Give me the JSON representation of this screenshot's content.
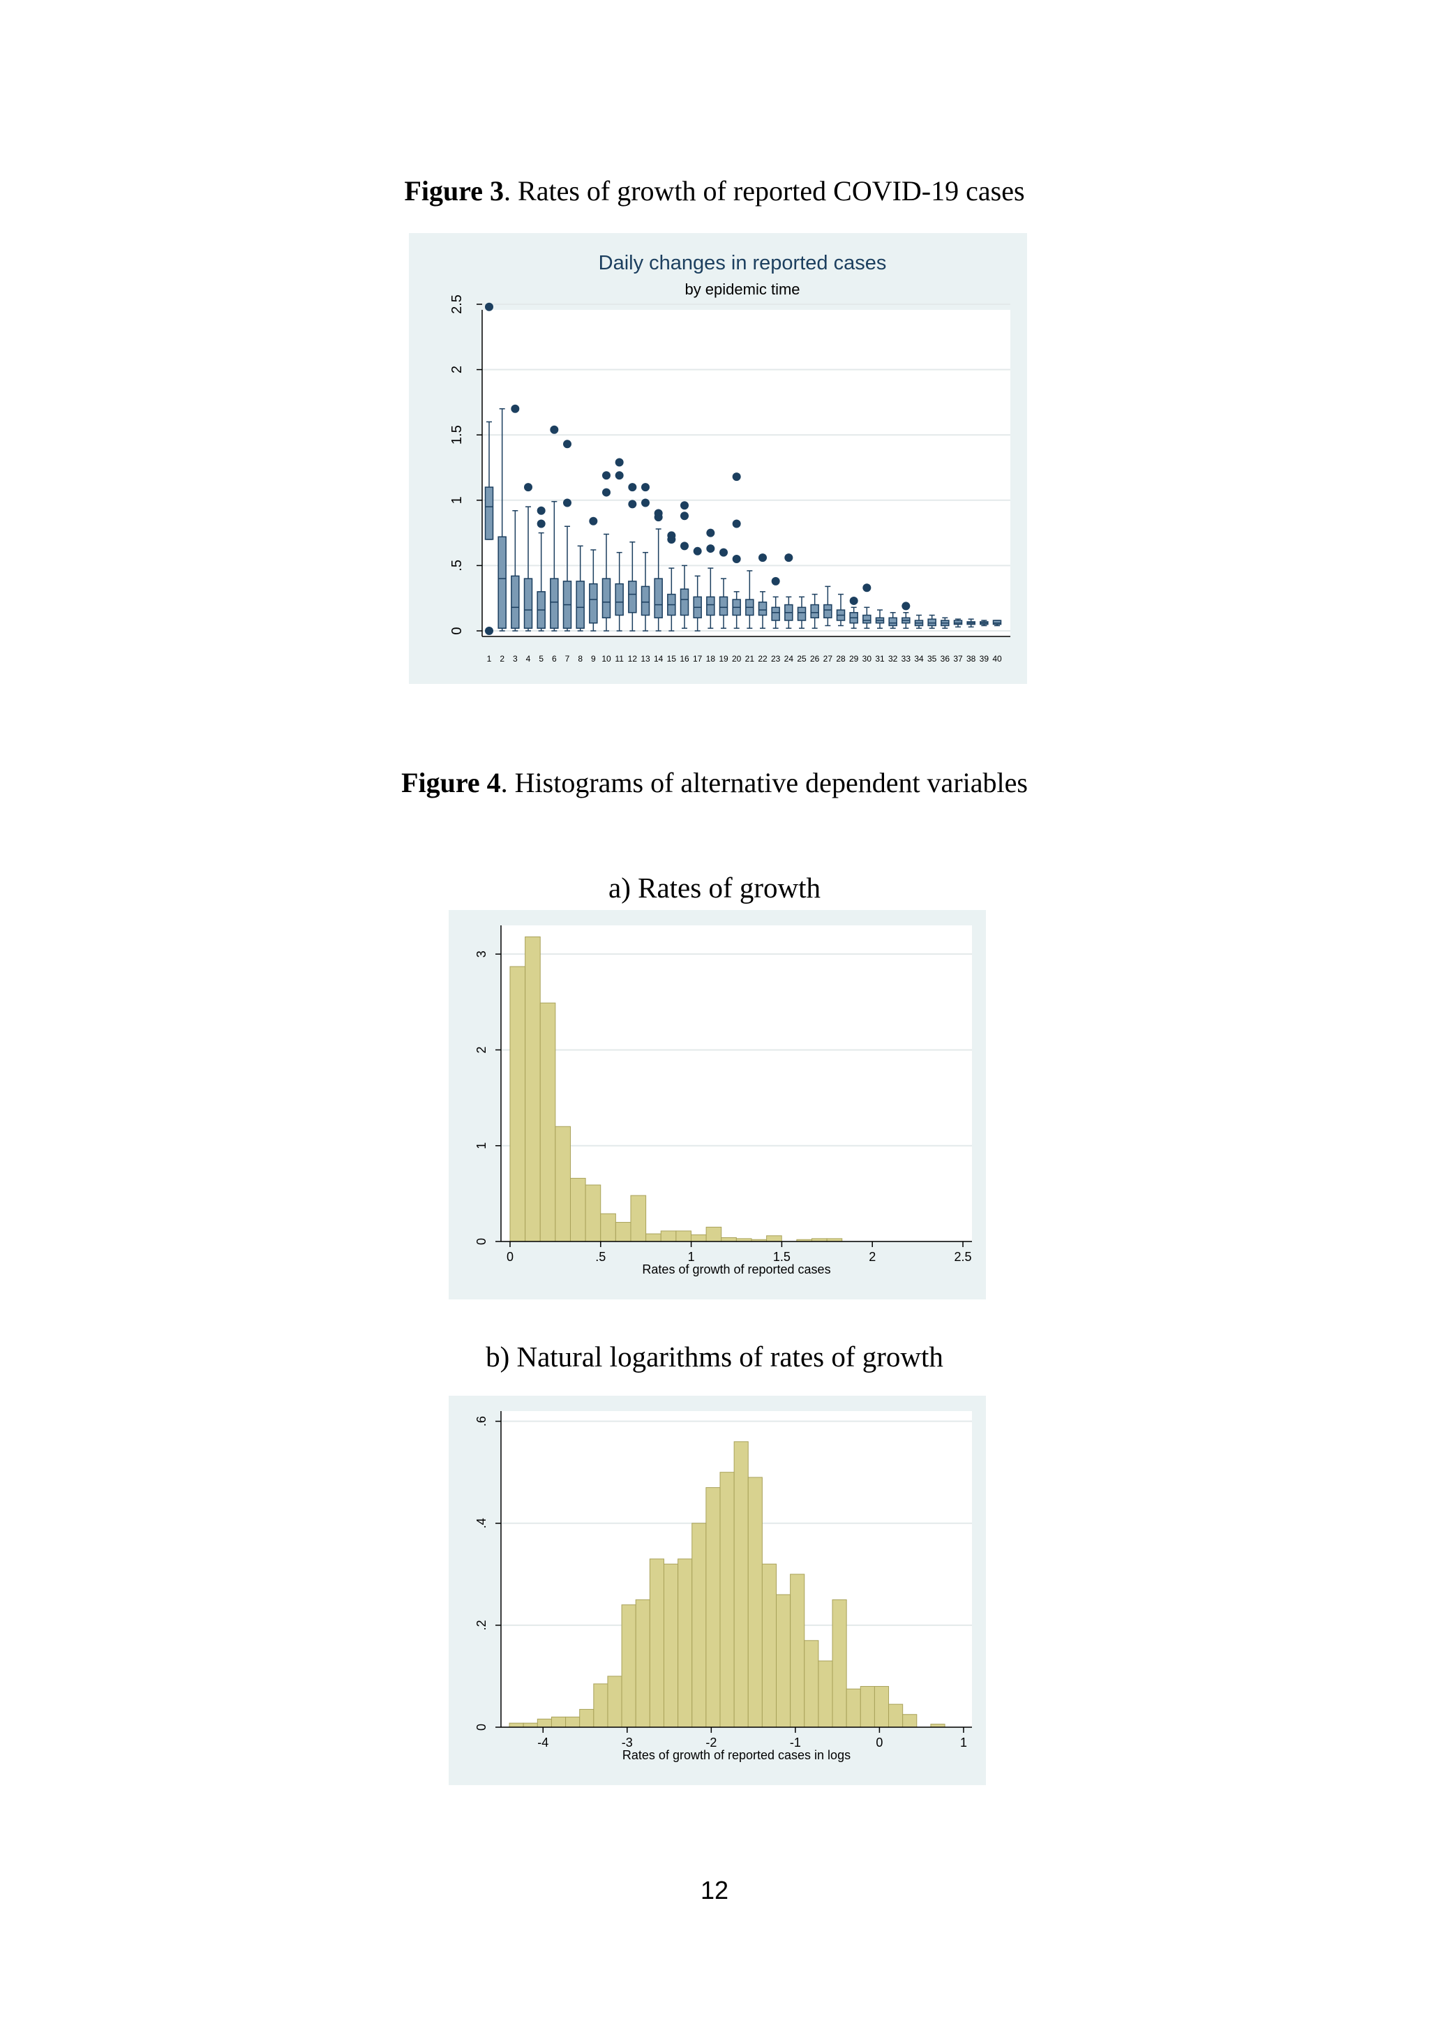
{
  "page_number": "12",
  "figure3": {
    "label": "Figure 3",
    "caption": ". Rates of growth of reported COVID-19 cases"
  },
  "figure4": {
    "label": "Figure 4",
    "caption": ". Histograms of alternative dependent variables",
    "panel_a_caption": "a) Rates of growth",
    "panel_b_caption": "b) Natural logarithms of rates of growth"
  },
  "colors": {
    "panel_bg": "#eaf2f3",
    "box_fill": "#7b9ab4",
    "box_stroke": "#1c3f5f",
    "outlier": "#1c3f5f",
    "hist_fill": "#d8d28f",
    "hist_stroke": "#a9a25a",
    "grid": "#e3e9ea"
  },
  "chart_data": [
    {
      "type": "box",
      "title": "Daily changes in reported cases",
      "subtitle": "by epidemic time",
      "xlabel": "",
      "ylabel": "",
      "ylim": [
        0,
        2.5
      ],
      "grid": true,
      "y_ticks": [
        0,
        0.5,
        1,
        1.5,
        2,
        2.5
      ],
      "y_tick_labels": [
        "0",
        ".5",
        "1",
        "1.5",
        "2",
        "2.5"
      ],
      "categories": [
        "1",
        "2",
        "3",
        "4",
        "5",
        "6",
        "7",
        "8",
        "9",
        "10",
        "11",
        "12",
        "13",
        "14",
        "15",
        "16",
        "17",
        "18",
        "19",
        "20",
        "21",
        "22",
        "23",
        "24",
        "25",
        "26",
        "27",
        "28",
        "29",
        "30",
        "31",
        "32",
        "33",
        "34",
        "35",
        "36",
        "37",
        "38",
        "39",
        "40"
      ],
      "boxes": [
        {
          "lo": 0.7,
          "q1": 0.7,
          "med": 0.95,
          "q3": 1.1,
          "hi": 1.6
        },
        {
          "lo": 0.0,
          "q1": 0.02,
          "med": 0.4,
          "q3": 0.72,
          "hi": 1.7
        },
        {
          "lo": 0.0,
          "q1": 0.02,
          "med": 0.18,
          "q3": 0.42,
          "hi": 0.92
        },
        {
          "lo": 0.0,
          "q1": 0.02,
          "med": 0.16,
          "q3": 0.4,
          "hi": 0.95
        },
        {
          "lo": 0.0,
          "q1": 0.02,
          "med": 0.16,
          "q3": 0.3,
          "hi": 0.75
        },
        {
          "lo": 0.0,
          "q1": 0.02,
          "med": 0.22,
          "q3": 0.4,
          "hi": 0.99
        },
        {
          "lo": 0.0,
          "q1": 0.02,
          "med": 0.2,
          "q3": 0.38,
          "hi": 0.8
        },
        {
          "lo": 0.0,
          "q1": 0.02,
          "med": 0.18,
          "q3": 0.38,
          "hi": 0.65
        },
        {
          "lo": 0.0,
          "q1": 0.06,
          "med": 0.24,
          "q3": 0.36,
          "hi": 0.62
        },
        {
          "lo": 0.0,
          "q1": 0.1,
          "med": 0.22,
          "q3": 0.4,
          "hi": 0.74
        },
        {
          "lo": 0.0,
          "q1": 0.12,
          "med": 0.22,
          "q3": 0.36,
          "hi": 0.6
        },
        {
          "lo": 0.0,
          "q1": 0.14,
          "med": 0.28,
          "q3": 0.38,
          "hi": 0.68
        },
        {
          "lo": 0.0,
          "q1": 0.12,
          "med": 0.22,
          "q3": 0.34,
          "hi": 0.6
        },
        {
          "lo": 0.0,
          "q1": 0.1,
          "med": 0.2,
          "q3": 0.4,
          "hi": 0.78
        },
        {
          "lo": 0.0,
          "q1": 0.12,
          "med": 0.2,
          "q3": 0.28,
          "hi": 0.48
        },
        {
          "lo": 0.02,
          "q1": 0.12,
          "med": 0.24,
          "q3": 0.32,
          "hi": 0.5
        },
        {
          "lo": 0.0,
          "q1": 0.1,
          "med": 0.18,
          "q3": 0.26,
          "hi": 0.42
        },
        {
          "lo": 0.02,
          "q1": 0.12,
          "med": 0.2,
          "q3": 0.26,
          "hi": 0.48
        },
        {
          "lo": 0.02,
          "q1": 0.12,
          "med": 0.18,
          "q3": 0.26,
          "hi": 0.4
        },
        {
          "lo": 0.02,
          "q1": 0.12,
          "med": 0.18,
          "q3": 0.24,
          "hi": 0.3
        },
        {
          "lo": 0.02,
          "q1": 0.12,
          "med": 0.18,
          "q3": 0.24,
          "hi": 0.46
        },
        {
          "lo": 0.02,
          "q1": 0.12,
          "med": 0.16,
          "q3": 0.22,
          "hi": 0.3
        },
        {
          "lo": 0.02,
          "q1": 0.08,
          "med": 0.14,
          "q3": 0.18,
          "hi": 0.26
        },
        {
          "lo": 0.02,
          "q1": 0.08,
          "med": 0.14,
          "q3": 0.2,
          "hi": 0.26
        },
        {
          "lo": 0.02,
          "q1": 0.08,
          "med": 0.14,
          "q3": 0.18,
          "hi": 0.26
        },
        {
          "lo": 0.02,
          "q1": 0.1,
          "med": 0.14,
          "q3": 0.2,
          "hi": 0.28
        },
        {
          "lo": 0.04,
          "q1": 0.1,
          "med": 0.16,
          "q3": 0.2,
          "hi": 0.34
        },
        {
          "lo": 0.04,
          "q1": 0.08,
          "med": 0.12,
          "q3": 0.16,
          "hi": 0.28
        },
        {
          "lo": 0.02,
          "q1": 0.06,
          "med": 0.1,
          "q3": 0.14,
          "hi": 0.18
        },
        {
          "lo": 0.02,
          "q1": 0.06,
          "med": 0.08,
          "q3": 0.12,
          "hi": 0.18
        },
        {
          "lo": 0.02,
          "q1": 0.06,
          "med": 0.08,
          "q3": 0.1,
          "hi": 0.16
        },
        {
          "lo": 0.02,
          "q1": 0.04,
          "med": 0.06,
          "q3": 0.1,
          "hi": 0.14
        },
        {
          "lo": 0.02,
          "q1": 0.06,
          "med": 0.08,
          "q3": 0.1,
          "hi": 0.14
        },
        {
          "lo": 0.02,
          "q1": 0.04,
          "med": 0.06,
          "q3": 0.08,
          "hi": 0.12
        },
        {
          "lo": 0.02,
          "q1": 0.04,
          "med": 0.06,
          "q3": 0.09,
          "hi": 0.12
        },
        {
          "lo": 0.02,
          "q1": 0.04,
          "med": 0.06,
          "q3": 0.08,
          "hi": 0.1
        },
        {
          "lo": 0.03,
          "q1": 0.05,
          "med": 0.06,
          "q3": 0.08,
          "hi": 0.09
        },
        {
          "lo": 0.03,
          "q1": 0.05,
          "med": 0.06,
          "q3": 0.07,
          "hi": 0.09
        },
        {
          "lo": 0.04,
          "q1": 0.05,
          "med": 0.06,
          "q3": 0.07,
          "hi": 0.08
        },
        {
          "lo": 0.04,
          "q1": 0.05,
          "med": 0.06,
          "q3": 0.08,
          "hi": 0.08
        }
      ],
      "outliers": [
        [
          1,
          2.48
        ],
        [
          1,
          0.0
        ],
        [
          3,
          1.7
        ],
        [
          4,
          1.1
        ],
        [
          5,
          0.92
        ],
        [
          5,
          0.82
        ],
        [
          6,
          1.54
        ],
        [
          7,
          1.43
        ],
        [
          7,
          0.98
        ],
        [
          9,
          0.84
        ],
        [
          10,
          1.19
        ],
        [
          10,
          1.06
        ],
        [
          11,
          1.29
        ],
        [
          11,
          1.19
        ],
        [
          12,
          1.1
        ],
        [
          12,
          0.97
        ],
        [
          13,
          1.1
        ],
        [
          13,
          0.98
        ],
        [
          14,
          0.9
        ],
        [
          14,
          0.87
        ],
        [
          15,
          0.73
        ],
        [
          15,
          0.7
        ],
        [
          16,
          0.96
        ],
        [
          16,
          0.88
        ],
        [
          16,
          0.65
        ],
        [
          17,
          0.61
        ],
        [
          18,
          0.75
        ],
        [
          18,
          0.63
        ],
        [
          19,
          0.6
        ],
        [
          20,
          1.18
        ],
        [
          20,
          0.82
        ],
        [
          20,
          0.55
        ],
        [
          22,
          0.56
        ],
        [
          23,
          0.38
        ],
        [
          24,
          0.56
        ],
        [
          29,
          0.23
        ],
        [
          30,
          0.33
        ],
        [
          33,
          0.19
        ]
      ]
    },
    {
      "type": "histogram",
      "title": "",
      "xlabel": "Rates of growth of reported cases",
      "ylabel": "",
      "xlim": [
        -0.05,
        2.55
      ],
      "ylim": [
        0,
        3.3
      ],
      "x_ticks": [
        0,
        0.5,
        1,
        1.5,
        2,
        2.5
      ],
      "x_tick_labels": [
        "0",
        ".5",
        "1",
        "1.5",
        "2",
        "2.5"
      ],
      "y_ticks": [
        0,
        1,
        2,
        3
      ],
      "y_tick_labels": [
        "0",
        "1",
        "2",
        "3"
      ],
      "bin_start": 0,
      "bin_width": 0.0833,
      "values": [
        2.87,
        3.18,
        2.49,
        1.2,
        0.66,
        0.59,
        0.29,
        0.2,
        0.48,
        0.08,
        0.11,
        0.11,
        0.07,
        0.15,
        0.04,
        0.03,
        0.02,
        0.06,
        0.0,
        0.02,
        0.03,
        0.03,
        0.0,
        0.0,
        0.0,
        0.0,
        0.0,
        0.0,
        0.0,
        0.0,
        0.0,
        0.0,
        0.0,
        0.0,
        0.0,
        0.0,
        0.0,
        0.0,
        0.0,
        0.0,
        0.02
      ]
    },
    {
      "type": "histogram",
      "title": "",
      "xlabel": "Rates of growth of reported cases in logs",
      "ylabel": "",
      "xlim": [
        -4.5,
        1.1
      ],
      "ylim": [
        0,
        0.62
      ],
      "x_ticks": [
        -4,
        -3,
        -2,
        -1,
        0,
        1
      ],
      "x_tick_labels": [
        "-4",
        "-3",
        "-2",
        "-1",
        "0",
        "1"
      ],
      "y_ticks": [
        0,
        0.2,
        0.4,
        0.6
      ],
      "y_tick_labels": [
        "0",
        ".2",
        ".4",
        ".6"
      ],
      "bin_start": -4.4,
      "bin_width": 0.167,
      "values": [
        0.008,
        0.008,
        0.016,
        0.02,
        0.02,
        0.035,
        0.085,
        0.1,
        0.24,
        0.25,
        0.33,
        0.32,
        0.33,
        0.4,
        0.47,
        0.5,
        0.56,
        0.49,
        0.32,
        0.26,
        0.3,
        0.17,
        0.13,
        0.25,
        0.075,
        0.08,
        0.08,
        0.045,
        0.025,
        0.0,
        0.006
      ]
    }
  ]
}
